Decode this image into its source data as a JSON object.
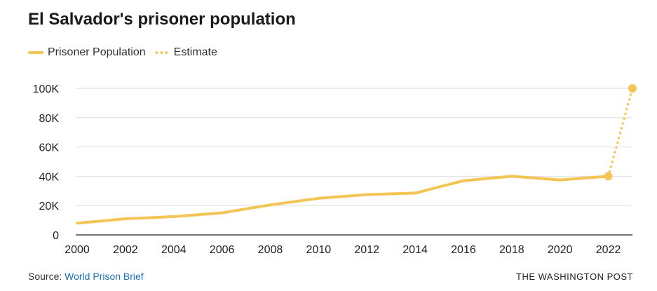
{
  "chart_data": {
    "type": "line",
    "title": "El Salvador's prisoner population",
    "xlabel": "",
    "ylabel": "",
    "xlim": [
      2000,
      2023
    ],
    "ylim": [
      0,
      100000
    ],
    "x_ticks": [
      2000,
      2002,
      2004,
      2006,
      2008,
      2010,
      2012,
      2014,
      2016,
      2018,
      2020,
      2022
    ],
    "x_tick_labels": [
      "2000",
      "2002",
      "2004",
      "2006",
      "2008",
      "2010",
      "2012",
      "2014",
      "2016",
      "2018",
      "2020",
      "2022"
    ],
    "y_ticks": [
      0,
      20000,
      40000,
      60000,
      80000,
      100000
    ],
    "y_tick_labels": [
      "0",
      "20K",
      "40K",
      "60K",
      "80K",
      "100K"
    ],
    "grid": "horizontal",
    "legend_position": "top-left",
    "series": [
      {
        "name": "Prisoner Population",
        "style": "solid",
        "color": "#f4c555",
        "x": [
          2000,
          2002,
          2004,
          2006,
          2008,
          2010,
          2012,
          2014,
          2016,
          2018,
          2020,
          2022
        ],
        "y": [
          8000,
          11000,
          12500,
          15000,
          20500,
          25000,
          27500,
          28500,
          37000,
          40000,
          37500,
          40000
        ]
      },
      {
        "name": "Estimate",
        "style": "dotted",
        "color": "#f4c555",
        "x": [
          2022,
          2023
        ],
        "y": [
          40000,
          100000
        ]
      }
    ]
  },
  "footer": {
    "source_label": "Source: ",
    "source_link": "World Prison Brief",
    "publisher": "THE WASHINGTON POST"
  }
}
